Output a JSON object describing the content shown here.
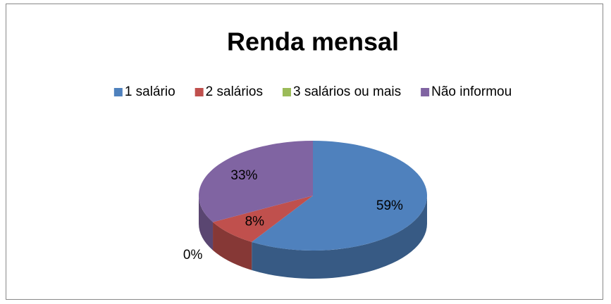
{
  "chart_data": {
    "type": "pie3d",
    "title": "Renda mensal",
    "categories": [
      "1 salário",
      "2 salários",
      "3 salários ou mais",
      "Não informou"
    ],
    "values": [
      59,
      8,
      0,
      33
    ],
    "value_labels": [
      "59%",
      "8%",
      "0%",
      "33%"
    ],
    "colors": [
      "#4f81bd",
      "#c0504d",
      "#9bbb59",
      "#8064a2"
    ],
    "legend": "top"
  }
}
